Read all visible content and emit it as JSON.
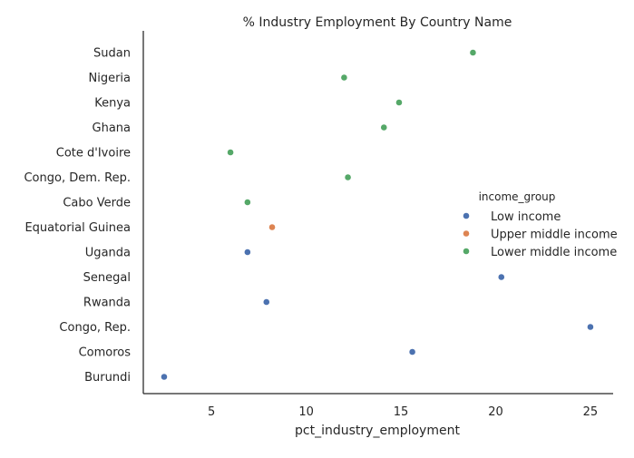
{
  "chart_data": {
    "type": "scatter",
    "title": "% Industry Employment By Country Name",
    "xlabel": "pct_industry_employment",
    "ylabel": "",
    "xlim": [
      1.4,
      26.2
    ],
    "xticks": [
      5,
      10,
      15,
      20,
      25
    ],
    "categories": [
      "Sudan",
      "Nigeria",
      "Kenya",
      "Ghana",
      "Cote d'Ivoire",
      "Congo, Dem. Rep.",
      "Cabo Verde",
      "Equatorial Guinea",
      "Uganda",
      "Senegal",
      "Rwanda",
      "Congo, Rep.",
      "Comoros",
      "Burundi"
    ],
    "legend": {
      "title": "income_group",
      "position": "right"
    },
    "grid": false,
    "series": [
      {
        "name": "Low income",
        "color": "#4c72b0",
        "points": [
          {
            "category": "Uganda",
            "x": 6.9
          },
          {
            "category": "Senegal",
            "x": 20.3
          },
          {
            "category": "Rwanda",
            "x": 7.9
          },
          {
            "category": "Congo, Rep.",
            "x": 25.0
          },
          {
            "category": "Comoros",
            "x": 15.6
          },
          {
            "category": "Burundi",
            "x": 2.5
          }
        ]
      },
      {
        "name": "Upper middle income",
        "color": "#dd8452",
        "points": [
          {
            "category": "Equatorial Guinea",
            "x": 8.2
          }
        ]
      },
      {
        "name": "Lower middle income",
        "color": "#55a868",
        "points": [
          {
            "category": "Sudan",
            "x": 18.8
          },
          {
            "category": "Nigeria",
            "x": 12.0
          },
          {
            "category": "Kenya",
            "x": 14.9
          },
          {
            "category": "Ghana",
            "x": 14.1
          },
          {
            "category": "Cote d'Ivoire",
            "x": 6.0
          },
          {
            "category": "Congo, Dem. Rep.",
            "x": 12.2
          },
          {
            "category": "Cabo Verde",
            "x": 6.9
          }
        ]
      }
    ]
  }
}
